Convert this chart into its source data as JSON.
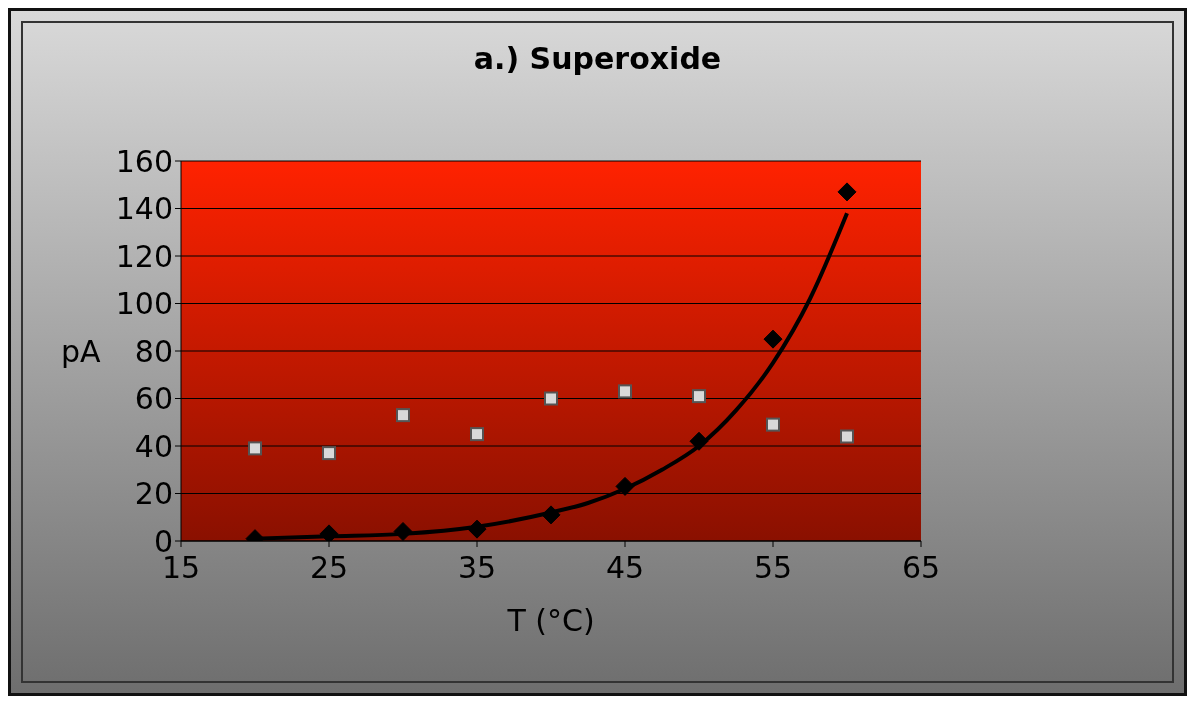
{
  "chart_data": {
    "type": "scatter",
    "title": "a.) Superoxide",
    "xlabel": "T (°C)",
    "ylabel": "pA",
    "xlim": [
      15,
      65
    ],
    "xticks": [
      15,
      25,
      35,
      45,
      55,
      65
    ],
    "ylim": [
      0,
      160
    ],
    "yticks": [
      0,
      20,
      40,
      60,
      80,
      100,
      120,
      140,
      160
    ],
    "grid": "y",
    "legend": false,
    "series": [
      {
        "marker": "diamond",
        "color": "#000000",
        "x": [
          20,
          25,
          30,
          35,
          40,
          45,
          50,
          55,
          60
        ],
        "values": [
          1,
          3,
          4,
          5,
          11,
          23,
          42,
          85,
          147
        ]
      },
      {
        "marker": "square",
        "color": "#d9d9d9",
        "x": [
          20,
          25,
          30,
          35,
          40,
          45,
          50,
          55,
          60
        ],
        "values": [
          39,
          37,
          53,
          45,
          60,
          63,
          61,
          49,
          44
        ]
      },
      {
        "type": "line",
        "marker": "none",
        "color": "#000000",
        "x": [
          20,
          25,
          30,
          35,
          40,
          42.5,
          45,
          47.5,
          50,
          52.5,
          55,
          57.5,
          60
        ],
        "values": [
          1,
          2,
          3,
          6,
          12,
          16,
          22,
          30,
          40,
          55,
          75,
          102,
          138
        ]
      }
    ]
  }
}
